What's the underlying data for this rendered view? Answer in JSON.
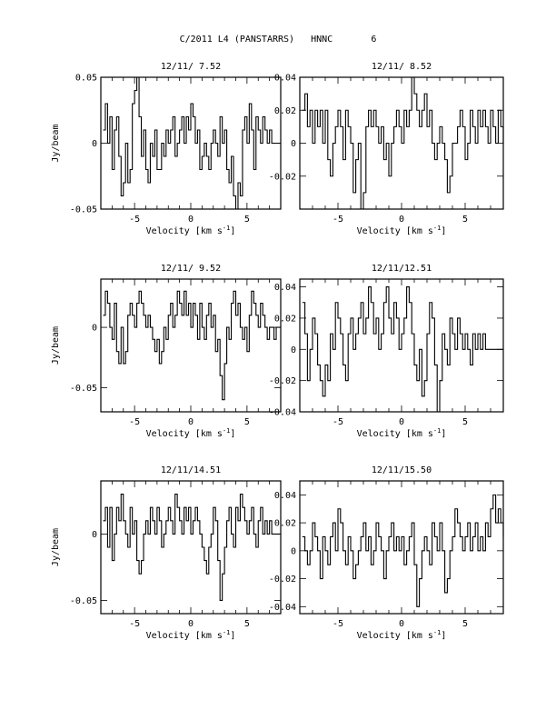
{
  "page": {
    "title": "C/2011 L4 (PANSTARRS)   HNNC       6"
  },
  "chart_data": [
    {
      "type": "line",
      "title": "12/11/ 7.52",
      "xlabel": "Velocity [km s",
      "xlabel_sup": "-1",
      "xlabel_end": "]",
      "ylabel": "Jy/beam",
      "xlim": [
        -8.0,
        8.0
      ],
      "ylim": [
        -0.05,
        0.05
      ],
      "xticks": [
        -5,
        0,
        5
      ],
      "xtick_labels": [
        "-5",
        "0",
        "5"
      ],
      "yticks": [
        -0.05,
        0,
        0.05
      ],
      "ytick_labels": [
        "-0.05",
        "0",
        "0.05"
      ],
      "x_start": -7.7,
      "x_step": 0.2,
      "series": [
        {
          "values": [
            0.01,
            0.03,
            0.0,
            0.02,
            -0.02,
            0.01,
            0.02,
            -0.01,
            -0.04,
            -0.03,
            0.0,
            -0.03,
            -0.02,
            0.03,
            0.04,
            0.05,
            0.02,
            -0.01,
            0.01,
            -0.02,
            -0.03,
            0.0,
            -0.01,
            0.01,
            -0.02,
            -0.02,
            0.0,
            -0.01,
            0.01,
            0.0,
            0.01,
            0.02,
            -0.01,
            0.0,
            0.01,
            0.02,
            0.0,
            0.02,
            0.01,
            0.03,
            0.02,
            0.0,
            0.01,
            -0.02,
            -0.01,
            0.0,
            -0.01,
            -0.02,
            0.0,
            0.01,
            0.0,
            -0.01,
            0.02,
            0.0,
            0.01,
            -0.02,
            -0.03,
            -0.01,
            -0.04,
            -0.05,
            -0.03,
            -0.04,
            0.01,
            0.02,
            0.0,
            0.03,
            0.01,
            -0.02,
            0.02,
            0.01,
            0.0,
            0.02,
            0.01,
            0.0,
            0.01,
            0.0,
            0.0,
            0.0,
            0.0,
            0.0
          ]
        }
      ]
    },
    {
      "type": "line",
      "title": "12/11/ 8.52",
      "xlabel": "Velocity [km s",
      "xlabel_sup": "-1",
      "xlabel_end": "]",
      "ylabel": "",
      "xlim": [
        -8.0,
        8.0
      ],
      "ylim": [
        -0.04,
        0.04
      ],
      "xticks": [
        -5,
        0,
        5
      ],
      "xtick_labels": [
        "-5",
        "0",
        "5"
      ],
      "yticks": [
        -0.02,
        0,
        0.02,
        0.04
      ],
      "ytick_labels": [
        "-0.02",
        "0",
        "0.02",
        "0.04"
      ],
      "x_start": -7.7,
      "x_step": 0.2,
      "series": [
        {
          "values": [
            0.02,
            0.03,
            0.01,
            0.02,
            0.0,
            0.02,
            0.01,
            0.02,
            0.0,
            0.02,
            -0.01,
            -0.02,
            0.0,
            0.01,
            0.02,
            0.01,
            -0.01,
            0.02,
            0.01,
            0.0,
            -0.03,
            -0.01,
            0.0,
            -0.04,
            -0.03,
            0.01,
            0.02,
            0.01,
            0.02,
            0.01,
            0.0,
            0.01,
            -0.01,
            0.0,
            -0.02,
            0.0,
            0.01,
            0.02,
            0.01,
            0.0,
            0.02,
            0.01,
            0.02,
            0.04,
            0.03,
            0.02,
            0.01,
            0.02,
            0.03,
            0.01,
            0.02,
            0.0,
            -0.01,
            0.0,
            0.01,
            0.0,
            -0.01,
            -0.03,
            -0.02,
            0.0,
            0.0,
            0.01,
            0.02,
            0.01,
            -0.01,
            0.0,
            0.02,
            0.01,
            0.0,
            0.02,
            0.01,
            0.02,
            0.01,
            0.0,
            0.02,
            0.01,
            0.0,
            0.02,
            0.01,
            0.0
          ]
        }
      ]
    },
    {
      "type": "line",
      "title": "12/11/ 9.52",
      "xlabel": "Velocity [km s",
      "xlabel_sup": "-1",
      "xlabel_end": "]",
      "ylabel": "Jy/beam",
      "xlim": [
        -8.0,
        8.0
      ],
      "ylim": [
        -0.07,
        0.04
      ],
      "xticks": [
        -5,
        0,
        5
      ],
      "xtick_labels": [
        "-5",
        "0",
        "5"
      ],
      "yticks": [
        -0.05,
        0
      ],
      "ytick_labels": [
        "-0.05",
        "0"
      ],
      "x_start": -7.7,
      "x_step": 0.2,
      "series": [
        {
          "values": [
            0.01,
            0.03,
            0.02,
            0.0,
            -0.01,
            0.02,
            -0.02,
            -0.03,
            0.0,
            -0.03,
            -0.02,
            0.01,
            0.02,
            0.01,
            0.0,
            0.02,
            0.03,
            0.02,
            0.01,
            0.0,
            0.01,
            0.0,
            -0.01,
            -0.02,
            -0.01,
            -0.03,
            -0.02,
            0.0,
            -0.01,
            0.01,
            0.02,
            0.0,
            0.01,
            0.03,
            0.02,
            0.01,
            0.03,
            0.01,
            0.02,
            0.0,
            0.02,
            0.01,
            -0.01,
            0.02,
            0.0,
            -0.01,
            0.01,
            0.02,
            0.0,
            0.01,
            -0.02,
            -0.01,
            -0.04,
            -0.06,
            -0.03,
            0.0,
            -0.01,
            0.02,
            0.03,
            0.01,
            0.02,
            0.0,
            -0.01,
            0.0,
            -0.02,
            0.01,
            0.03,
            0.02,
            0.01,
            0.0,
            0.02,
            0.01,
            0.0,
            -0.01,
            0.0,
            0.0,
            -0.01,
            0.0,
            0.0,
            0.0
          ]
        }
      ]
    },
    {
      "type": "line",
      "title": "12/11/12.51",
      "xlabel": "Velocity [km s",
      "xlabel_sup": "-1",
      "xlabel_end": "]",
      "ylabel": "",
      "xlim": [
        -8.0,
        8.0
      ],
      "ylim": [
        -0.04,
        0.045
      ],
      "xticks": [
        -5,
        0,
        5
      ],
      "xtick_labels": [
        "-5",
        "0",
        "5"
      ],
      "yticks": [
        -0.04,
        -0.02,
        0,
        0.02,
        0.04
      ],
      "ytick_labels": [
        "-0.04",
        "-0.02",
        "0",
        "0.02",
        "0.04"
      ],
      "x_start": -7.7,
      "x_step": 0.2,
      "series": [
        {
          "values": [
            0.03,
            0.01,
            -0.02,
            0.0,
            0.02,
            0.01,
            -0.01,
            -0.02,
            -0.03,
            -0.01,
            -0.02,
            0.01,
            0.0,
            0.03,
            0.02,
            0.01,
            -0.01,
            -0.02,
            0.01,
            0.02,
            0.0,
            0.01,
            0.02,
            0.03,
            0.01,
            0.02,
            0.04,
            0.03,
            0.01,
            0.02,
            0.0,
            0.01,
            0.03,
            0.04,
            0.02,
            0.01,
            0.03,
            0.02,
            0.0,
            0.01,
            0.02,
            0.04,
            0.03,
            0.01,
            -0.01,
            -0.02,
            0.0,
            -0.03,
            -0.02,
            0.01,
            0.03,
            0.02,
            -0.01,
            -0.04,
            -0.02,
            0.01,
            0.0,
            -0.01,
            0.02,
            0.01,
            0.0,
            0.02,
            0.01,
            0.0,
            0.01,
            0.0,
            -0.01,
            0.01,
            0.0,
            0.01,
            0.0,
            0.01,
            0.0,
            0.0,
            0.0,
            0.0,
            0.0,
            0.0,
            0.0,
            0.0
          ]
        }
      ]
    },
    {
      "type": "line",
      "title": "12/11/14.51",
      "xlabel": "Velocity [km s",
      "xlabel_sup": "-1",
      "xlabel_end": "]",
      "ylabel": "Jy/beam",
      "xlim": [
        -8.0,
        8.0
      ],
      "ylim": [
        -0.06,
        0.04
      ],
      "xticks": [
        -5,
        0,
        5
      ],
      "xtick_labels": [
        "-5",
        "0",
        "5"
      ],
      "yticks": [
        -0.05,
        0
      ],
      "ytick_labels": [
        "-0.05",
        "0"
      ],
      "x_start": -7.7,
      "x_step": 0.2,
      "series": [
        {
          "values": [
            0.01,
            0.02,
            -0.01,
            0.02,
            -0.02,
            0.0,
            0.02,
            0.01,
            0.03,
            0.01,
            0.0,
            -0.01,
            0.02,
            0.0,
            0.01,
            -0.02,
            -0.03,
            -0.02,
            0.0,
            0.01,
            0.0,
            0.02,
            0.01,
            0.0,
            0.02,
            0.01,
            -0.01,
            0.0,
            0.01,
            0.02,
            0.01,
            0.0,
            0.03,
            0.02,
            0.01,
            0.0,
            0.02,
            0.01,
            0.02,
            0.0,
            0.01,
            0.02,
            0.01,
            0.0,
            -0.01,
            -0.02,
            -0.03,
            -0.01,
            0.0,
            0.02,
            0.01,
            -0.02,
            -0.05,
            -0.03,
            -0.01,
            0.01,
            0.02,
            0.0,
            -0.01,
            0.02,
            0.01,
            0.03,
            0.02,
            0.01,
            0.0,
            0.01,
            0.02,
            0.0,
            -0.01,
            0.01,
            0.02,
            0.0,
            0.01,
            0.0,
            0.01,
            0.0,
            0.0,
            0.0,
            0.0,
            0.0
          ]
        }
      ]
    },
    {
      "type": "line",
      "title": "12/11/15.50",
      "xlabel": "Velocity [km s",
      "xlabel_sup": "-1",
      "xlabel_end": "]",
      "ylabel": "",
      "xlim": [
        -8.0,
        8.0
      ],
      "ylim": [
        -0.045,
        0.05
      ],
      "xticks": [
        -5,
        0,
        5
      ],
      "xtick_labels": [
        "-5",
        "0",
        "5"
      ],
      "yticks": [
        -0.04,
        -0.02,
        0,
        0.02,
        0.04
      ],
      "ytick_labels": [
        "-0.04",
        "-0.02",
        "0",
        "0.02",
        "0.04"
      ],
      "x_start": -7.7,
      "x_step": 0.2,
      "series": [
        {
          "values": [
            0.01,
            0.0,
            -0.01,
            0.0,
            0.02,
            0.01,
            0.0,
            -0.02,
            0.01,
            0.0,
            -0.01,
            0.01,
            0.02,
            0.0,
            0.03,
            0.02,
            0.0,
            -0.01,
            0.01,
            0.0,
            -0.02,
            -0.01,
            0.0,
            0.01,
            0.02,
            0.0,
            0.01,
            -0.01,
            0.0,
            0.02,
            0.01,
            0.0,
            -0.02,
            0.0,
            0.01,
            0.02,
            0.0,
            0.01,
            0.0,
            0.01,
            -0.01,
            0.0,
            0.01,
            0.02,
            -0.01,
            -0.04,
            -0.02,
            0.0,
            0.01,
            0.0,
            -0.01,
            0.02,
            0.01,
            0.0,
            0.02,
            0.0,
            -0.03,
            -0.02,
            0.0,
            0.01,
            0.03,
            0.02,
            0.01,
            0.0,
            0.01,
            0.02,
            0.0,
            0.01,
            0.02,
            0.0,
            0.01,
            0.0,
            0.02,
            0.01,
            0.03,
            0.04,
            0.02,
            0.03,
            0.02,
            0.01
          ]
        }
      ]
    }
  ]
}
